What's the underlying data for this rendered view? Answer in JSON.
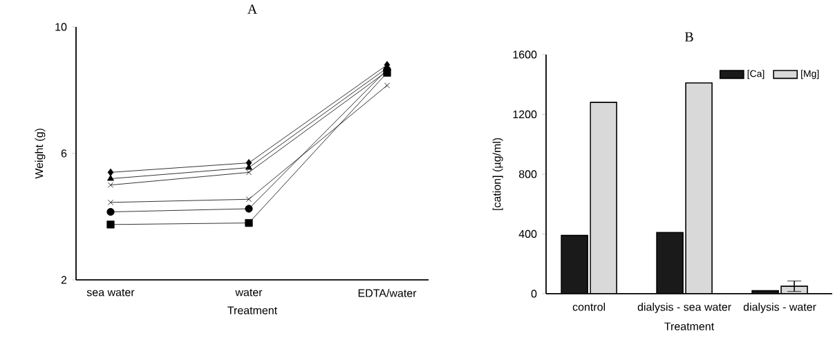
{
  "chart_data": [
    {
      "type": "line",
      "title": "A",
      "xlabel": "Treatment",
      "ylabel": "Weight  (g)",
      "categories": [
        "sea water",
        "water",
        "EDTA/water"
      ],
      "ylim": [
        2,
        10
      ],
      "yticks": [
        2,
        6,
        10
      ],
      "legend": false,
      "grid": false,
      "line_style": "solid",
      "series": [
        {
          "color": "#000000",
          "marker": "diamond",
          "values": [
            5.4,
            5.7,
            8.8
          ]
        },
        {
          "color": "#000000",
          "marker": "triangle",
          "values": [
            5.2,
            5.55,
            8.7
          ]
        },
        {
          "color": "#000000",
          "marker": "cross",
          "values": [
            5.0,
            5.4,
            8.6
          ]
        },
        {
          "color": "#000000",
          "marker": "cross",
          "values": [
            4.45,
            4.55,
            8.15
          ]
        },
        {
          "color": "#000000",
          "marker": "circle",
          "values": [
            4.15,
            4.25,
            8.65
          ]
        },
        {
          "color": "#000000",
          "marker": "square",
          "values": [
            3.75,
            3.8,
            8.55
          ]
        }
      ]
    },
    {
      "type": "bar",
      "title": "B",
      "xlabel": "Treatment",
      "ylabel": "[cation]  (µg/ml)",
      "categories": [
        "control",
        "dialysis - sea water",
        "dialysis - water"
      ],
      "ylim": [
        0,
        1600
      ],
      "yticks": [
        0,
        400,
        800,
        1200,
        1600
      ],
      "legend": "top right",
      "grid": false,
      "series": [
        {
          "name": "[Ca]",
          "color": "#1a1a1a",
          "values": [
            390,
            410,
            20
          ]
        },
        {
          "name": "[Mg]",
          "color": "#d9d9d9",
          "values": [
            1280,
            1410,
            50
          ],
          "errors": [
            null,
            null,
            35
          ]
        }
      ]
    }
  ]
}
